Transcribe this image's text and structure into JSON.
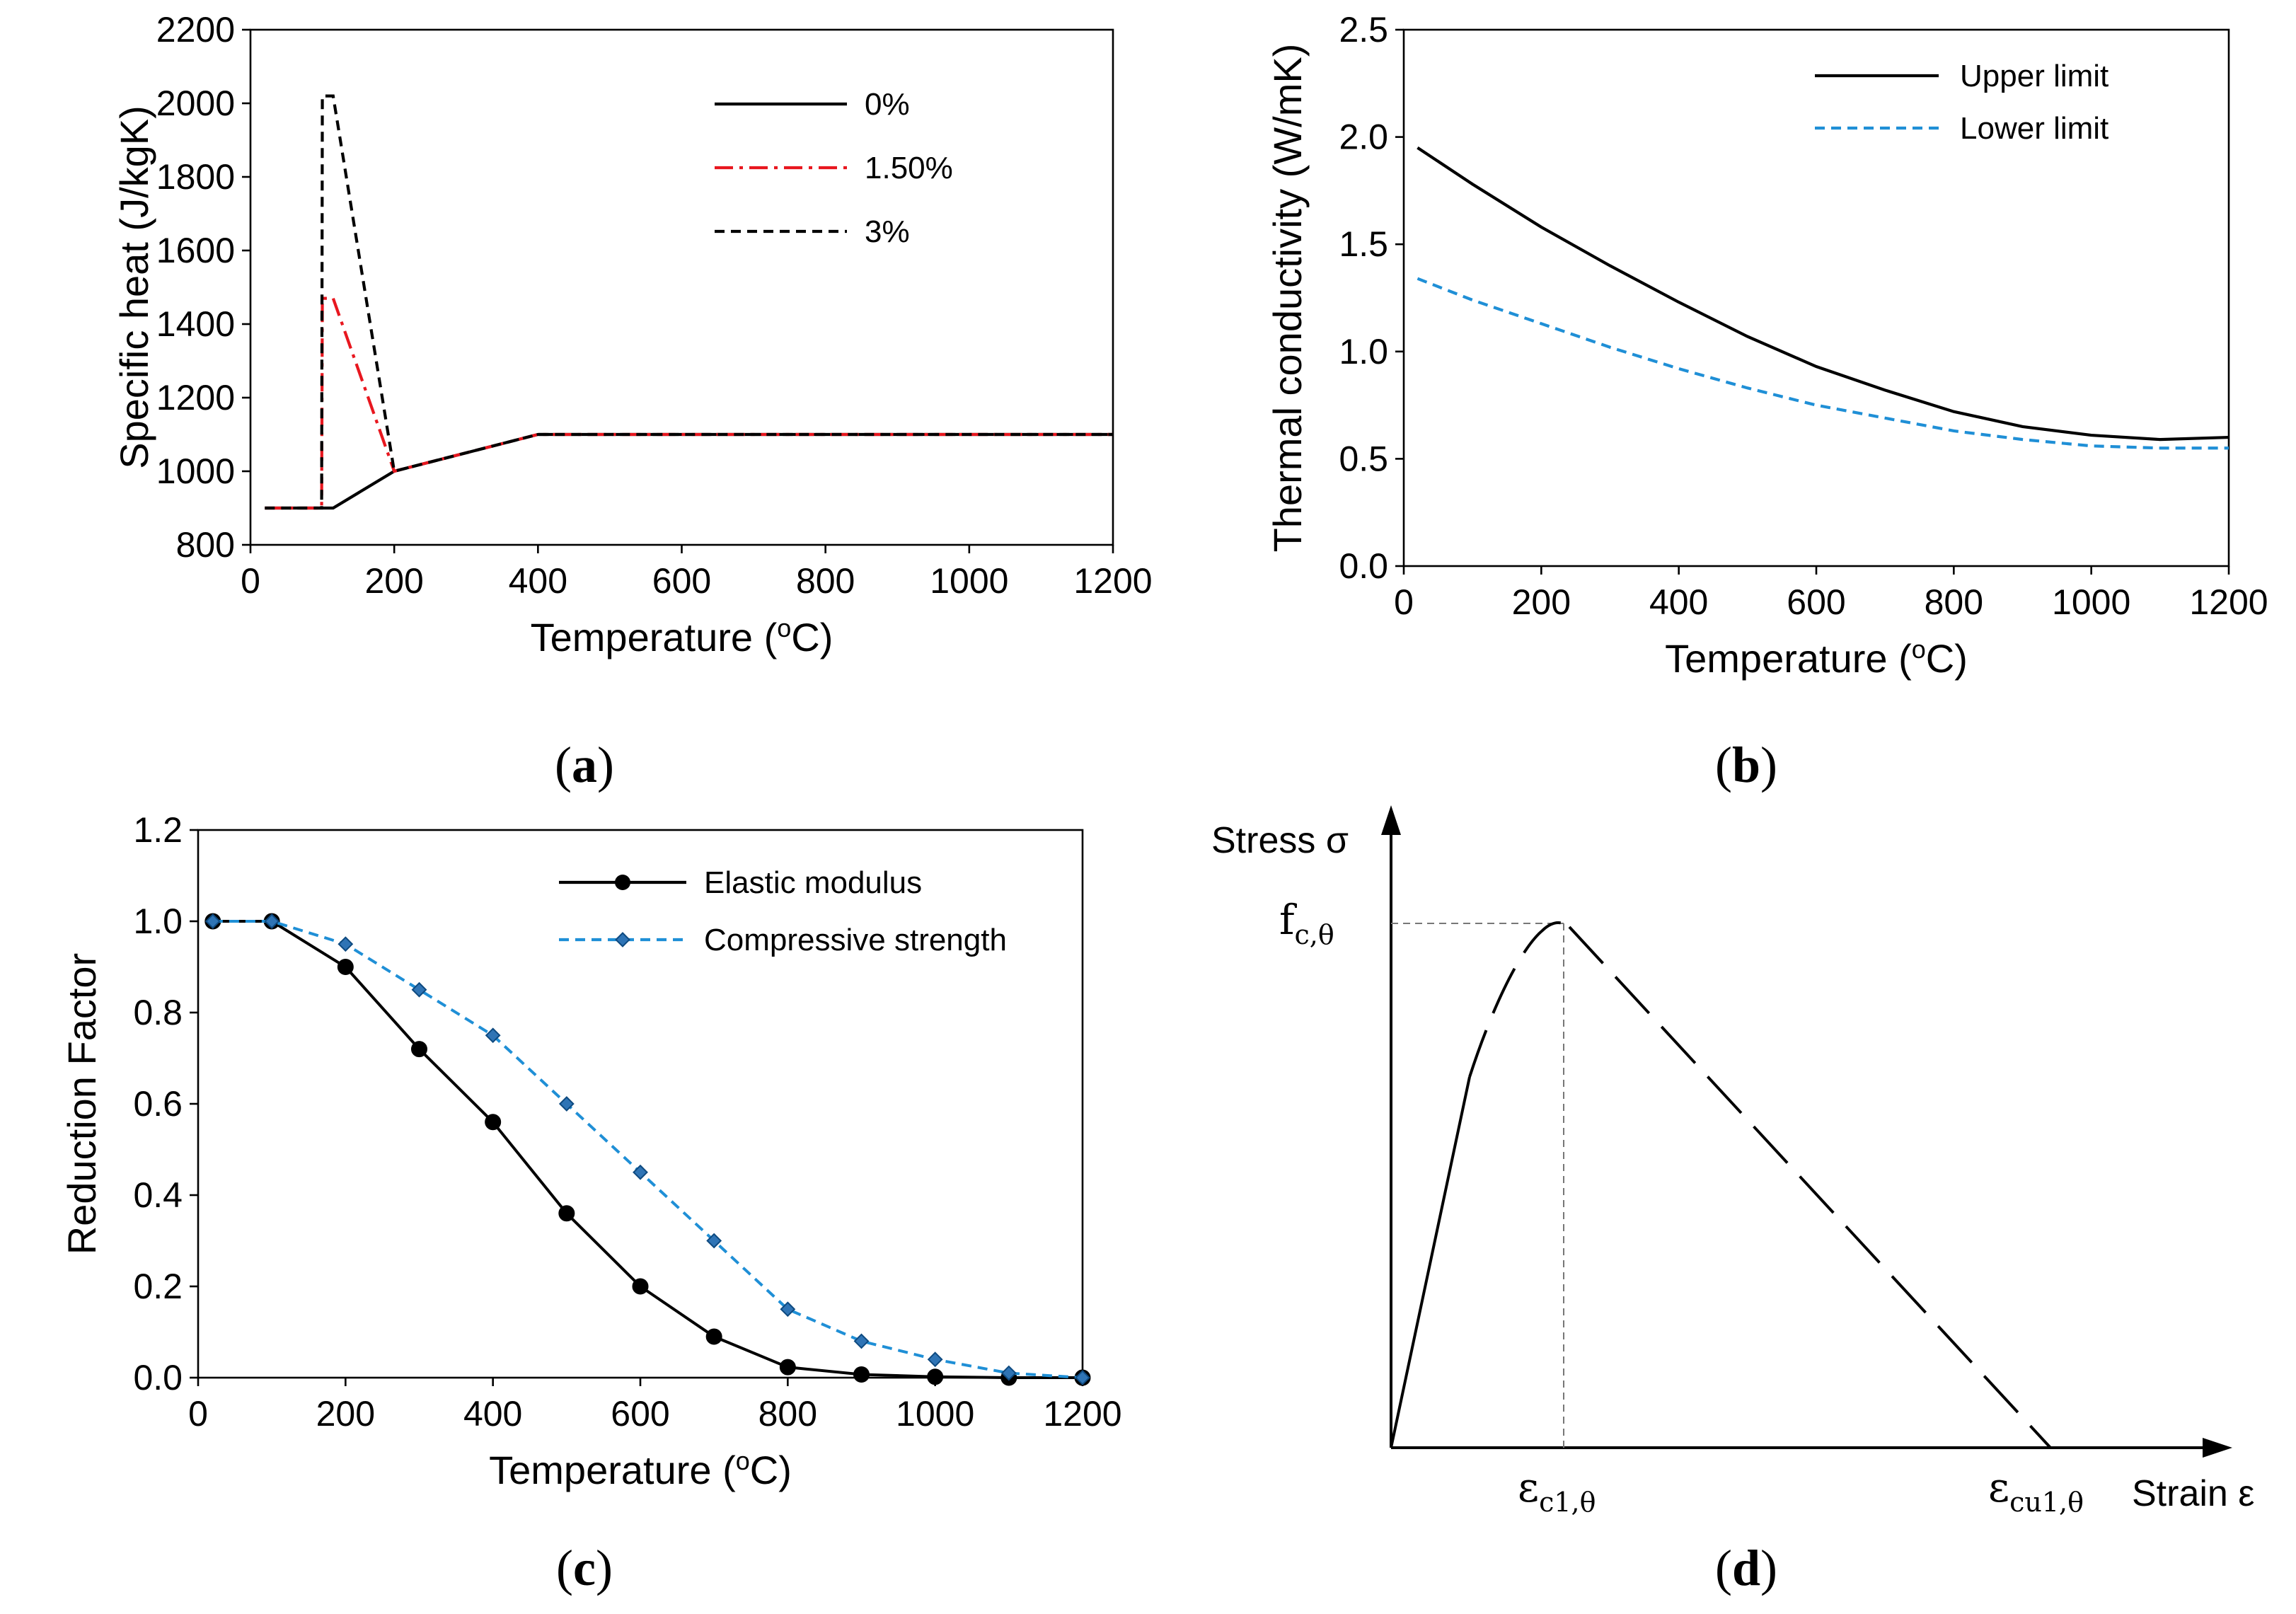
{
  "chart_data": [
    {
      "panel": "a",
      "type": "line",
      "xlabel": "Temperature (",
      "xlabel_unit_sup": "o",
      "xlabel_unit": "C)",
      "ylabel": "Specific heat (J/kgK)",
      "xlim": [
        0,
        1200
      ],
      "ylim": [
        800,
        2200
      ],
      "xticks": [
        0,
        200,
        400,
        600,
        800,
        1000,
        1200
      ],
      "yticks": [
        800,
        1000,
        1200,
        1400,
        1600,
        1800,
        2000,
        2200
      ],
      "legend_position": "top-right",
      "series": [
        {
          "name": "0%",
          "color": "#000000",
          "dash": "solid",
          "x": [
            20,
            115,
            200,
            400,
            1200
          ],
          "y": [
            900,
            900,
            1000,
            1100,
            1100
          ]
        },
        {
          "name": "1.50%",
          "color": "#e8171f",
          "dash": "dashdot",
          "x": [
            20,
            99,
            100,
            115,
            200,
            400,
            1200
          ],
          "y": [
            900,
            900,
            1470,
            1470,
            1000,
            1100,
            1100
          ]
        },
        {
          "name": "3%",
          "color": "#000000",
          "dash": "dashed",
          "x": [
            20,
            99,
            100,
            115,
            200,
            400,
            1200
          ],
          "y": [
            900,
            900,
            2020,
            2020,
            1000,
            1100,
            1100
          ]
        }
      ],
      "caption": "a"
    },
    {
      "panel": "b",
      "type": "line",
      "xlabel": "Temperature (",
      "xlabel_unit_sup": "o",
      "xlabel_unit": "C)",
      "ylabel": "Thermal conductivity (W/mK)",
      "xlim": [
        0,
        1200
      ],
      "ylim": [
        0.0,
        2.5
      ],
      "xticks": [
        0,
        200,
        400,
        600,
        800,
        1000,
        1200
      ],
      "yticks": [
        "0.0",
        "0.5",
        "1.0",
        "1.5",
        "2.0",
        "2.5"
      ],
      "legend_position": "top-right",
      "series": [
        {
          "name": "Upper limit",
          "color": "#000000",
          "dash": "solid",
          "x": [
            20,
            100,
            200,
            300,
            400,
            500,
            600,
            700,
            800,
            900,
            1000,
            1100,
            1200
          ],
          "y": [
            1.95,
            1.78,
            1.58,
            1.4,
            1.23,
            1.07,
            0.93,
            0.82,
            0.72,
            0.65,
            0.61,
            0.59,
            0.6
          ]
        },
        {
          "name": "Lower limit",
          "color": "#1f8fd6",
          "dash": "dashed",
          "x": [
            20,
            100,
            200,
            300,
            400,
            500,
            600,
            700,
            800,
            900,
            1000,
            1100,
            1200
          ],
          "y": [
            1.34,
            1.24,
            1.13,
            1.02,
            0.92,
            0.83,
            0.75,
            0.69,
            0.63,
            0.59,
            0.56,
            0.55,
            0.55
          ]
        }
      ],
      "caption": "b"
    },
    {
      "panel": "c",
      "type": "line",
      "xlabel": "Temperature (",
      "xlabel_unit_sup": "o",
      "xlabel_unit": "C)",
      "ylabel": "Reduction Factor",
      "xlim": [
        0,
        1200
      ],
      "ylim": [
        0.0,
        1.2
      ],
      "xticks": [
        0,
        200,
        400,
        600,
        800,
        1000,
        1200
      ],
      "yticks": [
        "0.0",
        "0.2",
        "0.4",
        "0.6",
        "0.8",
        "1.0",
        "1.2"
      ],
      "legend_position": "top-right",
      "series": [
        {
          "name": "Elastic modulus",
          "color": "#000000",
          "dash": "solid",
          "marker": "circle",
          "x": [
            20,
            100,
            200,
            300,
            400,
            500,
            600,
            700,
            800,
            900,
            1000,
            1100,
            1200
          ],
          "y": [
            1.0,
            1.0,
            0.9,
            0.72,
            0.56,
            0.36,
            0.2,
            0.09,
            0.023,
            0.007,
            0.002,
            0.0,
            0.0
          ]
        },
        {
          "name": "Compressive strength",
          "color": "#1f8fd6",
          "dash": "dashed",
          "marker": "diamond",
          "x": [
            20,
            100,
            200,
            300,
            400,
            500,
            600,
            700,
            800,
            900,
            1000,
            1100,
            1200
          ],
          "y": [
            1.0,
            1.0,
            0.95,
            0.85,
            0.75,
            0.6,
            0.45,
            0.3,
            0.15,
            0.08,
            0.04,
            0.01,
            0.0
          ]
        }
      ],
      "caption": "c"
    },
    {
      "panel": "d",
      "type": "diagram",
      "ylabel": "Stress σ",
      "xlabel": "Strain ε",
      "peak_label": "f",
      "peak_label_sub": "c,θ",
      "strain_peak_label": "ε",
      "strain_peak_sub": "c1,θ",
      "strain_ult_label": "ε",
      "strain_ult_sub": "cu1,θ",
      "caption": "d"
    }
  ],
  "captions": {
    "a": "a",
    "b": "b",
    "c": "c",
    "d": "d"
  }
}
